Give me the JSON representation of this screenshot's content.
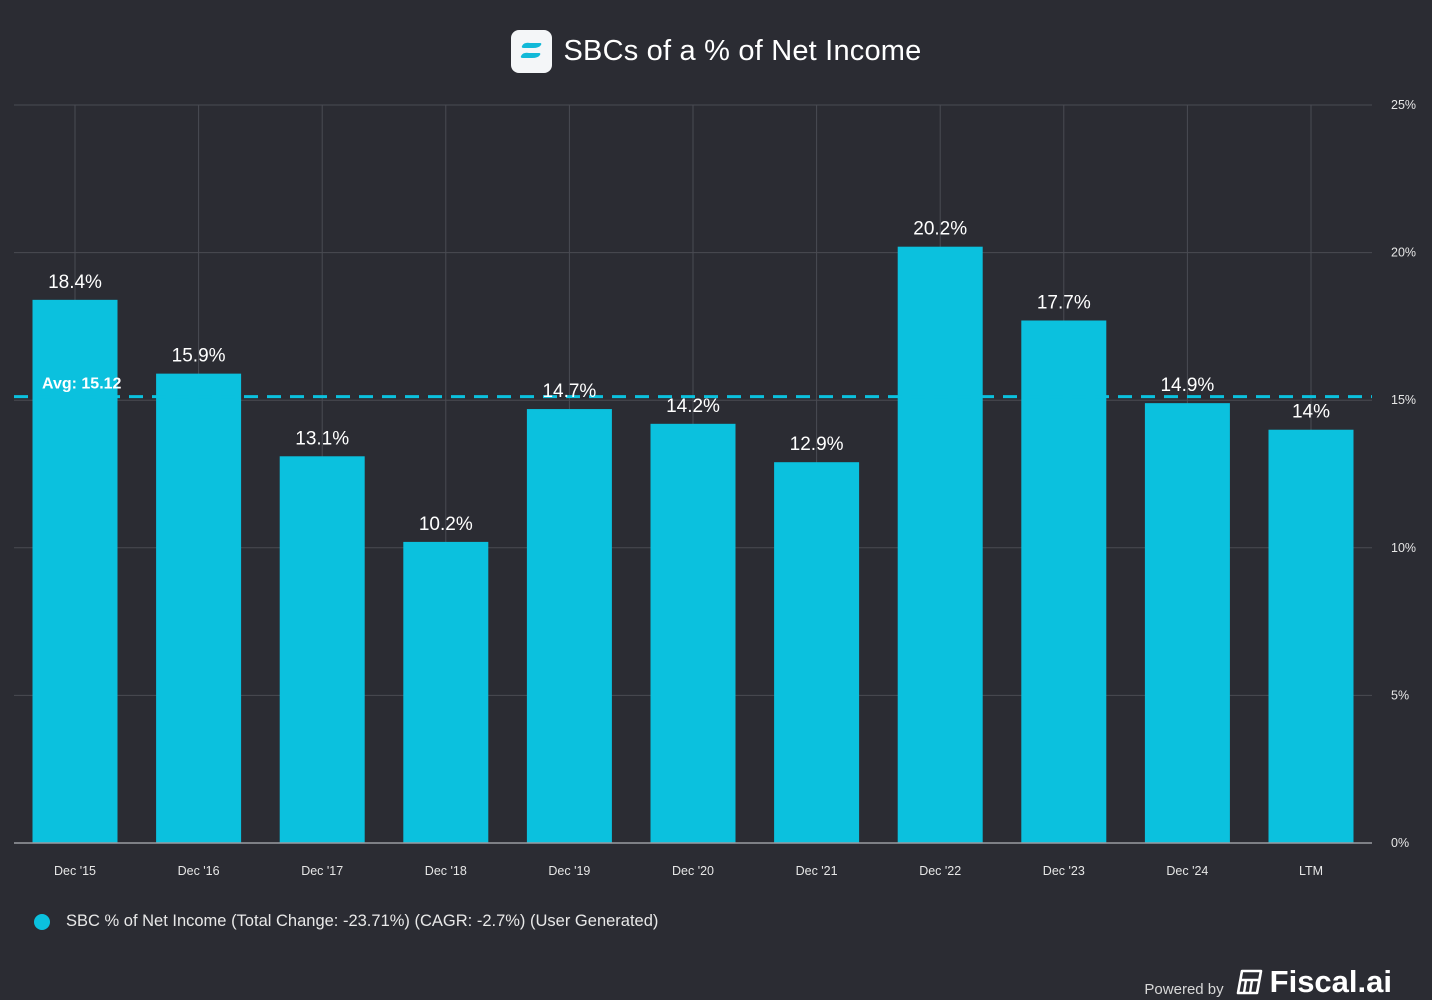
{
  "title": "SBCs of a % of Net Income",
  "icons": {
    "logo": "fiscal-logo-icon",
    "legend_marker": "legend-dot-icon",
    "brand": "fiscal-ai-brand-icon"
  },
  "colors": {
    "background": "#2b2c33",
    "bar": "#0bc1de",
    "grid": "#4a4b53",
    "avg_line": "#0bc1de"
  },
  "chart_data": {
    "type": "bar",
    "title": "SBCs of a % of Net Income",
    "categories": [
      "Dec '15",
      "Dec '16",
      "Dec '17",
      "Dec '18",
      "Dec '19",
      "Dec '20",
      "Dec '21",
      "Dec '22",
      "Dec '23",
      "Dec '24",
      "LTM"
    ],
    "series": [
      {
        "name": "SBC % of Net Income (Total Change: -23.71%) (CAGR: -2.7%) (User Generated)",
        "values": [
          18.4,
          15.9,
          13.1,
          10.2,
          14.7,
          14.2,
          12.9,
          20.2,
          17.7,
          14.9,
          14
        ],
        "data_labels": [
          "18.4%",
          "15.9%",
          "13.1%",
          "10.2%",
          "14.7%",
          "14.2%",
          "12.9%",
          "20.2%",
          "17.7%",
          "14.9%",
          "14%"
        ]
      }
    ],
    "average": {
      "value": 15.12,
      "label": "Avg: 15.12"
    },
    "ylim": [
      0,
      25
    ],
    "yticks": [
      0,
      5,
      10,
      15,
      20,
      25
    ],
    "ytick_labels": [
      "0%",
      "5%",
      "10%",
      "15%",
      "20%",
      "25%"
    ],
    "y_axis_side": "right",
    "grid": true,
    "xlabel": "",
    "ylabel": "",
    "legend_position": "bottom-left"
  },
  "legend": {
    "label": "SBC % of Net Income (Total Change: -23.71%) (CAGR: -2.7%) (User Generated)"
  },
  "footer": {
    "powered_by": "Powered by",
    "brand": "Fiscal.ai"
  }
}
